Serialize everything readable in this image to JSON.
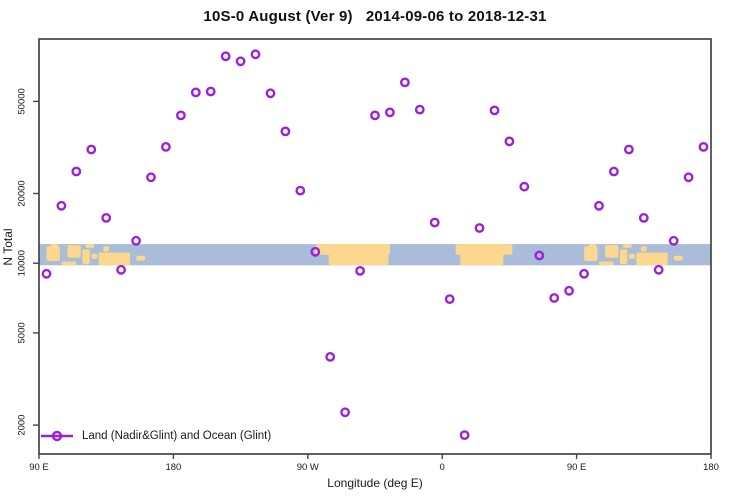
{
  "title": "10S-0 August (Ver 9)   2014-09-06 to 2018-12-31",
  "colors": {
    "marker": "#9b20dd",
    "band_ocean": "#a9bcd8",
    "band_land": "#fbd88d",
    "frame": "#454545",
    "text": "#1a1a1a"
  },
  "legend": {
    "label": "Land (Nadir&Glint) and Ocean (Glint)"
  },
  "chart_data": {
    "type": "scatter",
    "title": "10S-0 August (Ver 9)   2014-09-06 to 2018-12-31",
    "xlabel": "Longitude (deg E)",
    "ylabel": "N Total",
    "y_scale": "log",
    "grid": false,
    "legend_position": "bottom-left-inside",
    "xlim": [
      90,
      540
    ],
    "ylim": [
      1500,
      93000
    ],
    "x_ticks": [
      {
        "value": 90,
        "label": "90 E"
      },
      {
        "value": 180,
        "label": "180"
      },
      {
        "value": 270,
        "label": "90 W"
      },
      {
        "value": 360,
        "label": "0"
      },
      {
        "value": 450,
        "label": "90 E"
      },
      {
        "value": 540,
        "label": "180"
      }
    ],
    "y_ticks": [
      2000,
      5000,
      10000,
      20000,
      50000
    ],
    "band": {
      "description": "horizontal world-map strip: ocean band with land masses, longitude axis wraps 90E to 180 twice",
      "n_top": 12100,
      "n_bottom": 9800,
      "land_patches": [
        [
          95,
          104,
          0.1,
          0.8
        ],
        [
          98,
          103,
          0.0,
          0.3
        ],
        [
          109,
          118,
          0.05,
          0.65
        ],
        [
          105,
          115,
          0.82,
          1.0
        ],
        [
          119,
          124,
          0.25,
          0.95
        ],
        [
          121,
          127,
          0.0,
          0.18
        ],
        [
          125,
          129,
          0.45,
          0.7
        ],
        [
          130,
          151,
          0.4,
          1.0
        ],
        [
          133,
          137,
          0.1,
          0.35
        ],
        [
          155,
          161,
          0.55,
          0.78
        ],
        [
          275,
          325,
          0.0,
          0.5
        ],
        [
          284,
          324,
          0.4,
          1.0
        ],
        [
          369,
          407,
          0.0,
          0.5
        ],
        [
          372,
          401,
          0.4,
          1.0
        ],
        [
          455,
          464,
          0.1,
          0.8
        ],
        [
          458,
          463,
          0.0,
          0.3
        ],
        [
          469,
          478,
          0.05,
          0.65
        ],
        [
          465,
          475,
          0.82,
          1.0
        ],
        [
          479,
          484,
          0.25,
          0.95
        ],
        [
          481,
          487,
          0.0,
          0.18
        ],
        [
          485,
          489,
          0.45,
          0.7
        ],
        [
          490,
          511,
          0.4,
          1.0
        ],
        [
          493,
          497,
          0.1,
          0.35
        ],
        [
          515,
          521,
          0.55,
          0.78
        ]
      ]
    },
    "points": [
      {
        "lon": 95,
        "n": 9000
      },
      {
        "lon": 105,
        "n": 17700
      },
      {
        "lon": 115,
        "n": 24900
      },
      {
        "lon": 125,
        "n": 31000
      },
      {
        "lon": 135,
        "n": 15700
      },
      {
        "lon": 145,
        "n": 9370
      },
      {
        "lon": 155,
        "n": 12500
      },
      {
        "lon": 165,
        "n": 23500
      },
      {
        "lon": 175,
        "n": 31800
      },
      {
        "lon": 185,
        "n": 43500
      },
      {
        "lon": 195,
        "n": 54700
      },
      {
        "lon": 205,
        "n": 55200
      },
      {
        "lon": 215,
        "n": 78300
      },
      {
        "lon": 225,
        "n": 74500
      },
      {
        "lon": 235,
        "n": 79900
      },
      {
        "lon": 245,
        "n": 54200
      },
      {
        "lon": 255,
        "n": 37100
      },
      {
        "lon": 265,
        "n": 20600
      },
      {
        "lon": 275,
        "n": 11200
      },
      {
        "lon": 285,
        "n": 3940
      },
      {
        "lon": 295,
        "n": 2270
      },
      {
        "lon": 305,
        "n": 9270
      },
      {
        "lon": 315,
        "n": 43500
      },
      {
        "lon": 325,
        "n": 44800
      },
      {
        "lon": 335,
        "n": 60400
      },
      {
        "lon": 345,
        "n": 46100
      },
      {
        "lon": 355,
        "n": 15000
      },
      {
        "lon": 365,
        "n": 7000
      },
      {
        "lon": 375,
        "n": 1810
      },
      {
        "lon": 385,
        "n": 14200
      },
      {
        "lon": 395,
        "n": 45700
      },
      {
        "lon": 405,
        "n": 33600
      },
      {
        "lon": 415,
        "n": 21400
      },
      {
        "lon": 425,
        "n": 10800
      },
      {
        "lon": 435,
        "n": 7080
      },
      {
        "lon": 445,
        "n": 7600
      },
      {
        "lon": 455,
        "n": 9000
      },
      {
        "lon": 465,
        "n": 17700
      },
      {
        "lon": 475,
        "n": 24900
      },
      {
        "lon": 485,
        "n": 31000
      },
      {
        "lon": 495,
        "n": 15700
      },
      {
        "lon": 505,
        "n": 9370
      },
      {
        "lon": 515,
        "n": 12500
      },
      {
        "lon": 525,
        "n": 23500
      },
      {
        "lon": 535,
        "n": 31800
      }
    ]
  }
}
